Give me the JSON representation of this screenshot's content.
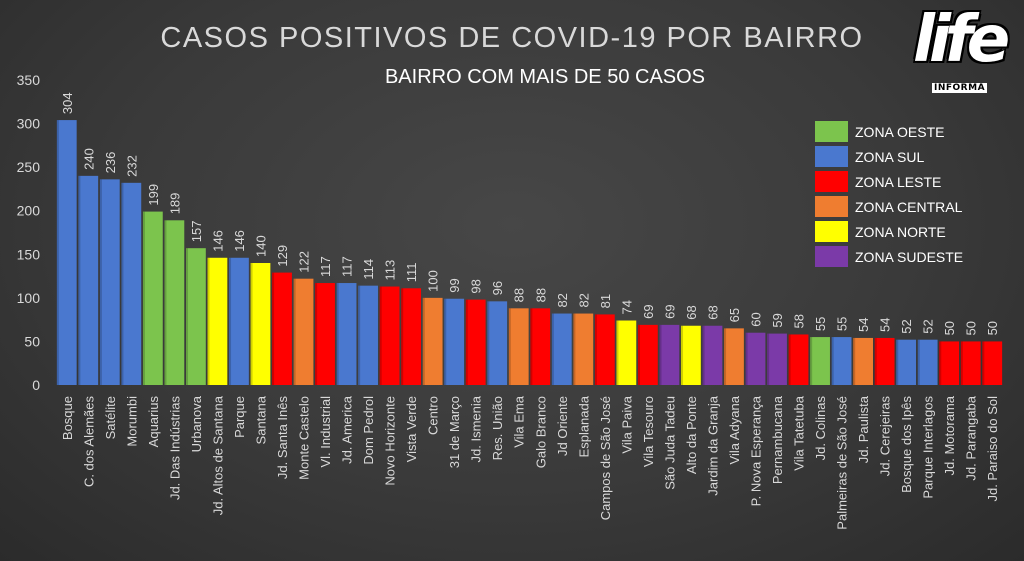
{
  "title": "CASOS POSITIVOS DE COVID-19 POR BAIRRO",
  "subtitle": "BAIRRO COM MAIS DE 50 CASOS",
  "logo": {
    "main": "life",
    "sub": "INFORMA"
  },
  "colors": {
    "background": "#3c3c3c",
    "text": "#d9d9d9",
    "grid": "#5a5a5a"
  },
  "legend": {
    "position": "top-right",
    "items": [
      {
        "label": "ZONA OESTE",
        "color": "#7cc44d"
      },
      {
        "label": "ZONA SUL",
        "color": "#4a78cf"
      },
      {
        "label": "ZONA LESTE",
        "color": "#ff0000"
      },
      {
        "label": "ZONA CENTRAL",
        "color": "#ef7d30"
      },
      {
        "label": "ZONA NORTE",
        "color": "#ffff00"
      },
      {
        "label": "ZONA SUDESTE",
        "color": "#7b3aa8"
      }
    ]
  },
  "chart_data": {
    "type": "bar",
    "title": "CASOS POSITIVOS DE COVID-19 POR BAIRRO",
    "subtitle": "BAIRRO COM MAIS DE 50 CASOS",
    "ylim": [
      0,
      350
    ],
    "yticks": [
      0,
      50,
      100,
      150,
      200,
      250,
      300,
      350
    ],
    "grid": false,
    "categories": [
      "Bosque",
      "C. dos Alemães",
      "Satélite",
      "Morumbi",
      "Aquarius",
      "Jd. Das Indústrias",
      "Urbanova",
      "Jd. Altos de Santana",
      "Parque",
      "Santana",
      "Jd. Santa Inês",
      "Monte Castelo",
      "Vl. Industrial",
      "Jd. America",
      "Dom Pedrol",
      "Novo Horizonte",
      "Vista Verde",
      "Centro",
      "31 de Março",
      "Jd. Ismenia",
      "Res. União",
      "Vila Ema",
      "Galo Branco",
      "Jd Oriente",
      "Esplanada",
      "Campos de São José",
      "Vila Paiva",
      "Vila Tesouro",
      "São Juda Tadeu",
      "Alto da Ponte",
      "Jardim da Granja",
      "Vila Adyana",
      "P. Nova Esperança",
      "Pernambucana",
      "Vila Tatetuba",
      "Jd. Colinas",
      "Palmeiras de São José",
      "Jd. Paulista",
      "Jd. Cerejeiras",
      "Bosque dos Ipês",
      "Parque Interlagos",
      "Jd. Motorama",
      "Jd. Parangaba",
      "Jd. Paraiso do Sol"
    ],
    "values": [
      304,
      240,
      236,
      232,
      199,
      189,
      157,
      146,
      146,
      140,
      129,
      122,
      117,
      117,
      114,
      113,
      111,
      100,
      99,
      98,
      96,
      88,
      88,
      82,
      82,
      81,
      74,
      69,
      69,
      68,
      68,
      65,
      60,
      59,
      58,
      55,
      55,
      54,
      54,
      52,
      52,
      50,
      50,
      50
    ],
    "zones": [
      "ZONA SUL",
      "ZONA SUL",
      "ZONA SUL",
      "ZONA SUL",
      "ZONA OESTE",
      "ZONA OESTE",
      "ZONA OESTE",
      "ZONA NORTE",
      "ZONA SUL",
      "ZONA NORTE",
      "ZONA LESTE",
      "ZONA CENTRAL",
      "ZONA LESTE",
      "ZONA SUL",
      "ZONA SUL",
      "ZONA LESTE",
      "ZONA LESTE",
      "ZONA CENTRAL",
      "ZONA SUL",
      "ZONA LESTE",
      "ZONA SUL",
      "ZONA CENTRAL",
      "ZONA LESTE",
      "ZONA SUL",
      "ZONA CENTRAL",
      "ZONA LESTE",
      "ZONA NORTE",
      "ZONA LESTE",
      "ZONA SUDESTE",
      "ZONA NORTE",
      "ZONA SUDESTE",
      "ZONA CENTRAL",
      "ZONA SUDESTE",
      "ZONA SUDESTE",
      "ZONA LESTE",
      "ZONA OESTE",
      "ZONA SUL",
      "ZONA CENTRAL",
      "ZONA LESTE",
      "ZONA SUL",
      "ZONA SUL",
      "ZONA LESTE",
      "ZONA LESTE",
      "ZONA LESTE"
    ]
  }
}
